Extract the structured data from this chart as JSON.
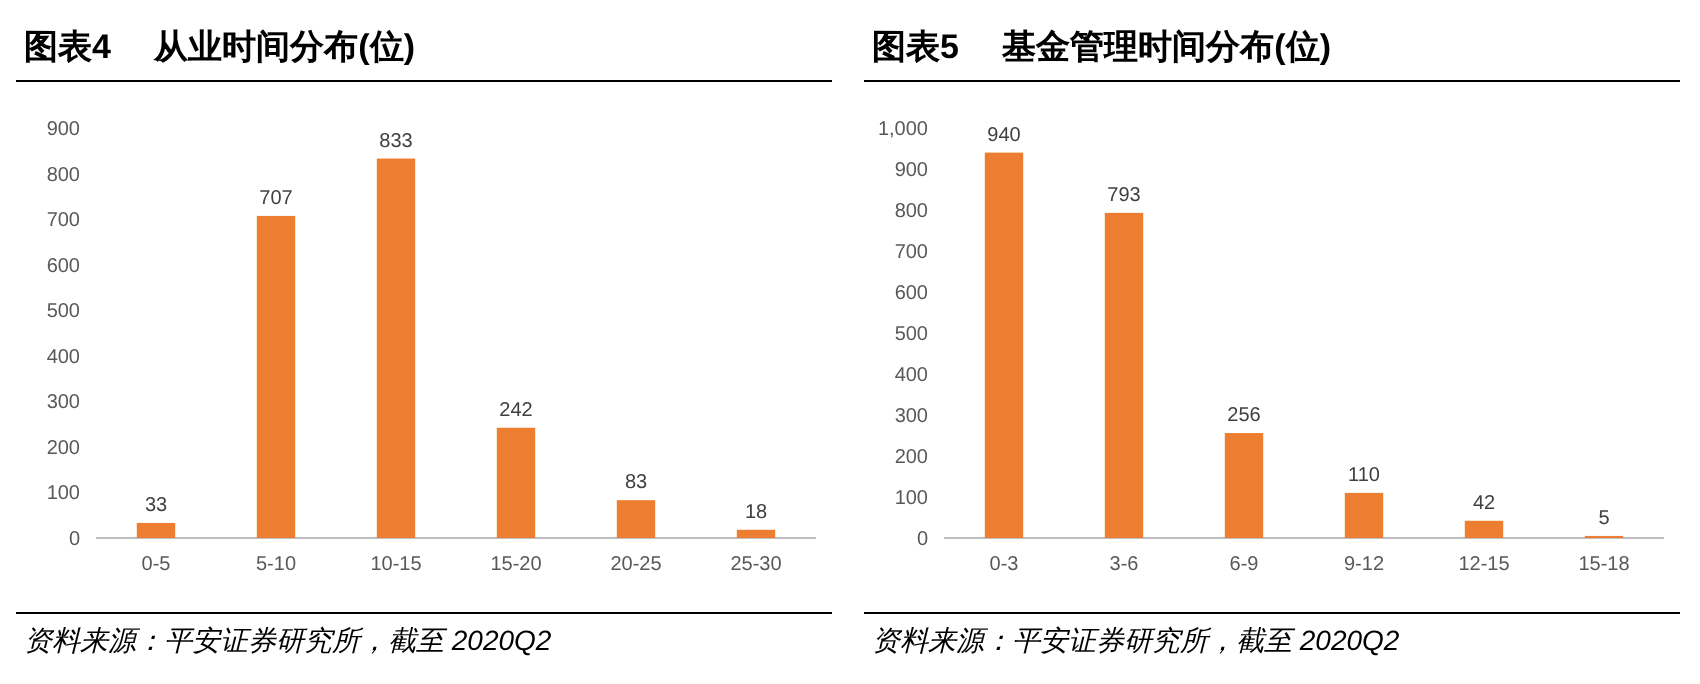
{
  "chart_data": [
    {
      "type": "bar",
      "title": "图表4　 从业时间分布(位)",
      "categories": [
        "0-5",
        "5-10",
        "10-15",
        "15-20",
        "20-25",
        "25-30"
      ],
      "values": [
        33,
        707,
        833,
        242,
        83,
        18
      ],
      "color": "#ed7d31",
      "ylim": [
        0,
        900
      ],
      "yticks": [
        0,
        100,
        200,
        300,
        400,
        500,
        600,
        700,
        800,
        900
      ],
      "data_labels": true,
      "annotations": [
        "资料来源：平安证券研究所，截至 2020Q2"
      ]
    },
    {
      "type": "bar",
      "title": "图表5　 基金管理时间分布(位)",
      "categories": [
        "0-3",
        "3-6",
        "6-9",
        "9-12",
        "12-15",
        "15-18"
      ],
      "values": [
        940,
        793,
        256,
        110,
        42,
        5
      ],
      "color": "#ed7d31",
      "ylim": [
        0,
        1000
      ],
      "yticks": [
        0,
        {
          "value": 100,
          "label": "100"
        },
        200,
        300,
        400,
        500,
        600,
        700,
        800,
        900,
        {
          "value": 1000,
          "label": "1,000"
        }
      ],
      "data_labels": true,
      "annotations": [
        "资料来源：平安证券研究所，截至 2020Q2"
      ]
    }
  ]
}
